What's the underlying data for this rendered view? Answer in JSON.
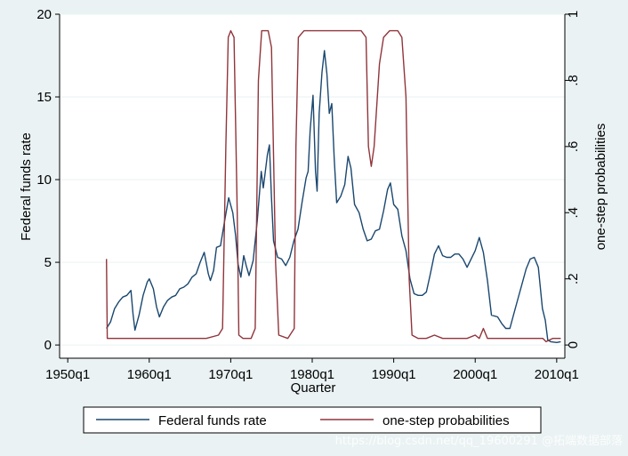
{
  "chart_data": {
    "type": "line",
    "xlabel": "Quarter",
    "ylabel_left": "Federal funds rate",
    "ylabel_right": "one-step probabilities",
    "x_range": [
      1949.0,
      2011.0
    ],
    "x_ticks": [
      {
        "value": 1950,
        "label": "1950q1"
      },
      {
        "value": 1960,
        "label": "1960q1"
      },
      {
        "value": 1970,
        "label": "1970q1"
      },
      {
        "value": 1980,
        "label": "1980q1"
      },
      {
        "value": 1990,
        "label": "1990q1"
      },
      {
        "value": 2000,
        "label": "2000q1"
      },
      {
        "value": 2010,
        "label": "2010q1"
      }
    ],
    "y_left_range": [
      -0.8,
      20
    ],
    "y_left_ticks": [
      {
        "value": 0,
        "label": "0"
      },
      {
        "value": 5,
        "label": "5"
      },
      {
        "value": 10,
        "label": "10"
      },
      {
        "value": 15,
        "label": "15"
      },
      {
        "value": 20,
        "label": "20"
      }
    ],
    "y_right_range": [
      -0.04,
      1.0
    ],
    "y_right_ticks": [
      {
        "value": 0,
        "label": "0"
      },
      {
        "value": 0.2,
        "label": ".2"
      },
      {
        "value": 0.4,
        "label": ".4"
      },
      {
        "value": 0.6,
        "label": ".6"
      },
      {
        "value": 0.8,
        "label": ".8"
      },
      {
        "value": 1.0,
        "label": "1"
      }
    ],
    "grid": true,
    "legend_position": "bottom",
    "series": [
      {
        "name": "Federal funds rate",
        "axis": "left",
        "color": "#1a476f",
        "points": [
          [
            1954.75,
            1.0
          ],
          [
            1955.25,
            1.4
          ],
          [
            1955.75,
            2.2
          ],
          [
            1956.25,
            2.6
          ],
          [
            1956.75,
            2.9
          ],
          [
            1957.25,
            3.0
          ],
          [
            1957.75,
            3.3
          ],
          [
            1958.0,
            1.9
          ],
          [
            1958.25,
            0.9
          ],
          [
            1958.75,
            1.8
          ],
          [
            1959.25,
            3.0
          ],
          [
            1959.75,
            3.8
          ],
          [
            1960.0,
            4.0
          ],
          [
            1960.5,
            3.4
          ],
          [
            1960.9,
            2.3
          ],
          [
            1961.25,
            1.7
          ],
          [
            1961.75,
            2.3
          ],
          [
            1962.25,
            2.7
          ],
          [
            1962.75,
            2.9
          ],
          [
            1963.25,
            3.0
          ],
          [
            1963.75,
            3.4
          ],
          [
            1964.25,
            3.5
          ],
          [
            1964.75,
            3.7
          ],
          [
            1965.25,
            4.1
          ],
          [
            1965.75,
            4.3
          ],
          [
            1966.25,
            5.0
          ],
          [
            1966.75,
            5.6
          ],
          [
            1967.25,
            4.3
          ],
          [
            1967.5,
            3.9
          ],
          [
            1967.9,
            4.5
          ],
          [
            1968.25,
            5.9
          ],
          [
            1968.75,
            6.0
          ],
          [
            1969.25,
            7.5
          ],
          [
            1969.75,
            8.9
          ],
          [
            1970.25,
            8.0
          ],
          [
            1970.6,
            6.6
          ],
          [
            1970.9,
            4.9
          ],
          [
            1971.25,
            4.1
          ],
          [
            1971.6,
            5.4
          ],
          [
            1971.9,
            4.8
          ],
          [
            1972.25,
            4.2
          ],
          [
            1972.75,
            5.1
          ],
          [
            1973.25,
            7.5
          ],
          [
            1973.75,
            10.5
          ],
          [
            1974.0,
            9.5
          ],
          [
            1974.5,
            11.5
          ],
          [
            1974.75,
            12.1
          ],
          [
            1975.0,
            8.9
          ],
          [
            1975.25,
            6.3
          ],
          [
            1975.75,
            5.3
          ],
          [
            1976.25,
            5.2
          ],
          [
            1976.75,
            4.8
          ],
          [
            1977.25,
            5.3
          ],
          [
            1977.75,
            6.3
          ],
          [
            1978.25,
            7.0
          ],
          [
            1978.75,
            8.6
          ],
          [
            1979.25,
            10.1
          ],
          [
            1979.5,
            10.5
          ],
          [
            1979.75,
            13.0
          ],
          [
            1980.1,
            15.1
          ],
          [
            1980.4,
            10.5
          ],
          [
            1980.6,
            9.3
          ],
          [
            1980.85,
            14.0
          ],
          [
            1981.2,
            16.5
          ],
          [
            1981.5,
            17.8
          ],
          [
            1981.8,
            16.4
          ],
          [
            1982.1,
            14.0
          ],
          [
            1982.4,
            14.6
          ],
          [
            1982.7,
            11.3
          ],
          [
            1983.0,
            8.6
          ],
          [
            1983.5,
            9.0
          ],
          [
            1984.0,
            9.7
          ],
          [
            1984.4,
            11.4
          ],
          [
            1984.75,
            10.7
          ],
          [
            1985.2,
            8.5
          ],
          [
            1985.75,
            8.0
          ],
          [
            1986.25,
            7.0
          ],
          [
            1986.75,
            6.3
          ],
          [
            1987.25,
            6.4
          ],
          [
            1987.75,
            6.9
          ],
          [
            1988.25,
            7.0
          ],
          [
            1988.75,
            8.1
          ],
          [
            1989.25,
            9.4
          ],
          [
            1989.6,
            9.8
          ],
          [
            1990.0,
            8.5
          ],
          [
            1990.5,
            8.2
          ],
          [
            1991.0,
            6.6
          ],
          [
            1991.5,
            5.7
          ],
          [
            1992.0,
            4.0
          ],
          [
            1992.5,
            3.1
          ],
          [
            1993.0,
            3.0
          ],
          [
            1993.5,
            3.0
          ],
          [
            1994.0,
            3.2
          ],
          [
            1994.5,
            4.3
          ],
          [
            1995.0,
            5.5
          ],
          [
            1995.5,
            6.0
          ],
          [
            1996.0,
            5.4
          ],
          [
            1996.5,
            5.3
          ],
          [
            1997.0,
            5.3
          ],
          [
            1997.5,
            5.5
          ],
          [
            1998.0,
            5.5
          ],
          [
            1998.5,
            5.2
          ],
          [
            1999.0,
            4.7
          ],
          [
            1999.5,
            5.2
          ],
          [
            2000.0,
            5.7
          ],
          [
            2000.5,
            6.5
          ],
          [
            2001.0,
            5.6
          ],
          [
            2001.5,
            3.9
          ],
          [
            2002.0,
            1.8
          ],
          [
            2002.75,
            1.7
          ],
          [
            2003.25,
            1.3
          ],
          [
            2003.75,
            1.0
          ],
          [
            2004.25,
            1.0
          ],
          [
            2004.75,
            1.9
          ],
          [
            2005.25,
            2.8
          ],
          [
            2005.75,
            3.7
          ],
          [
            2006.25,
            4.6
          ],
          [
            2006.75,
            5.2
          ],
          [
            2007.25,
            5.3
          ],
          [
            2007.75,
            4.7
          ],
          [
            2008.25,
            2.2
          ],
          [
            2008.6,
            1.5
          ],
          [
            2008.9,
            0.3
          ],
          [
            2009.25,
            0.2
          ],
          [
            2010.0,
            0.15
          ],
          [
            2010.5,
            0.2
          ]
        ]
      },
      {
        "name": "one-step probabilities",
        "axis": "right",
        "color": "#90353b",
        "points": [
          [
            1954.75,
            0.26
          ],
          [
            1954.85,
            0.02
          ],
          [
            1960.0,
            0.02
          ],
          [
            1965.0,
            0.02
          ],
          [
            1967.0,
            0.02
          ],
          [
            1968.5,
            0.03
          ],
          [
            1969.0,
            0.05
          ],
          [
            1969.4,
            0.6
          ],
          [
            1969.7,
            0.93
          ],
          [
            1970.0,
            0.95
          ],
          [
            1970.4,
            0.93
          ],
          [
            1970.8,
            0.4
          ],
          [
            1971.0,
            0.03
          ],
          [
            1971.5,
            0.02
          ],
          [
            1972.5,
            0.02
          ],
          [
            1973.0,
            0.05
          ],
          [
            1973.4,
            0.8
          ],
          [
            1973.8,
            0.95
          ],
          [
            1974.6,
            0.95
          ],
          [
            1975.0,
            0.9
          ],
          [
            1975.5,
            0.25
          ],
          [
            1975.9,
            0.03
          ],
          [
            1977.0,
            0.02
          ],
          [
            1977.8,
            0.05
          ],
          [
            1978.0,
            0.6
          ],
          [
            1978.3,
            0.93
          ],
          [
            1979.0,
            0.95
          ],
          [
            1983.0,
            0.95
          ],
          [
            1986.0,
            0.95
          ],
          [
            1986.6,
            0.93
          ],
          [
            1986.9,
            0.6
          ],
          [
            1987.25,
            0.54
          ],
          [
            1987.6,
            0.6
          ],
          [
            1988.25,
            0.85
          ],
          [
            1988.75,
            0.93
          ],
          [
            1989.5,
            0.95
          ],
          [
            1990.5,
            0.95
          ],
          [
            1991.0,
            0.93
          ],
          [
            1991.5,
            0.75
          ],
          [
            1991.9,
            0.2
          ],
          [
            1992.25,
            0.03
          ],
          [
            1993.0,
            0.02
          ],
          [
            1994.0,
            0.02
          ],
          [
            1995.0,
            0.03
          ],
          [
            1996.0,
            0.02
          ],
          [
            1999.0,
            0.02
          ],
          [
            2000.0,
            0.03
          ],
          [
            2000.5,
            0.02
          ],
          [
            2001.0,
            0.05
          ],
          [
            2001.5,
            0.02
          ],
          [
            2002.5,
            0.02
          ],
          [
            2005.0,
            0.02
          ],
          [
            2007.0,
            0.02
          ],
          [
            2008.3,
            0.02
          ],
          [
            2008.7,
            0.01
          ],
          [
            2009.5,
            0.02
          ],
          [
            2010.5,
            0.02
          ]
        ]
      }
    ]
  },
  "watermark": {
    "text": "https://blog.csdn.net/qq_19600291 @拓端数据部落"
  }
}
